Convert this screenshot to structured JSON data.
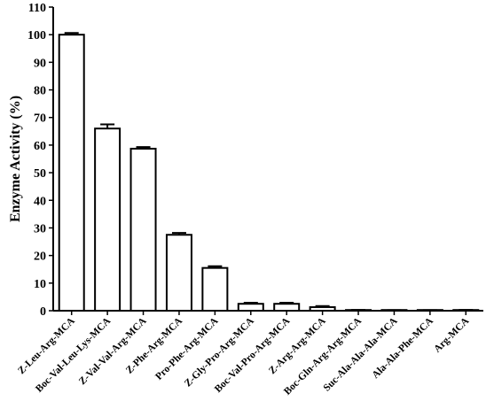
{
  "chart_data": {
    "type": "bar",
    "title": "",
    "xlabel": "",
    "ylabel": "Enzyme Activity (%)",
    "ylim": [
      0,
      110
    ],
    "yticks": [
      0,
      10,
      20,
      30,
      40,
      50,
      60,
      70,
      80,
      90,
      100,
      110
    ],
    "grid": false,
    "categories": [
      "Z-Leu-Arg-MCA",
      "Boc-Val-Leu-Lys-MCA",
      "Z-Val-Val-Arg-MCA",
      "Z-Phe-Arg-MCA",
      "Pro-Phe-Arg-MCA",
      "Z-Gly-Pro-Arg-MCA",
      "Boc-Val-Pro-Arg-MCA",
      "Z-Arg-Arg-MCA",
      "Boc-Gln-Arg-Arg-MCA",
      "Suc-Ala-Ala-Ala-MCA",
      "Ala-Ala-Phe-MCA",
      "Arg-MCA"
    ],
    "values": [
      100,
      66,
      58.7,
      27.5,
      15.5,
      2.5,
      2.5,
      1.3,
      0.2,
      0.1,
      0.1,
      0.2
    ],
    "errors": [
      0.6,
      1.5,
      0.6,
      0.7,
      0.6,
      0.4,
      0.4,
      0.4,
      0.1,
      0.1,
      0.1,
      0.1
    ]
  }
}
